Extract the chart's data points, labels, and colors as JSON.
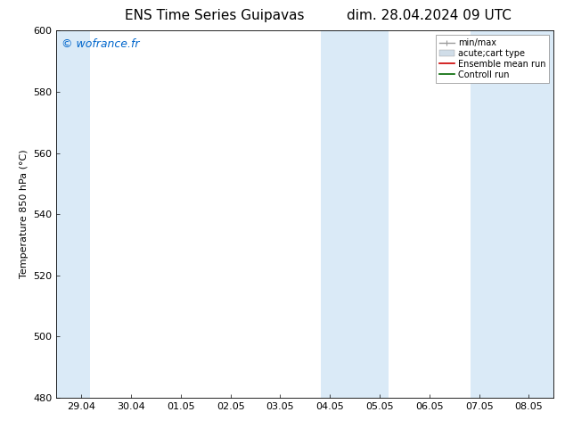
{
  "title_left": "ENS Time Series Guipavas",
  "title_right": "dim. 28.04.2024 09 UTC",
  "ylabel": "Temperature 850 hPa (°C)",
  "watermark": "© wofrance.fr",
  "watermark_color": "#0066cc",
  "ylim": [
    480,
    600
  ],
  "yticks": [
    480,
    500,
    520,
    540,
    560,
    580,
    600
  ],
  "xtick_labels": [
    "29.04",
    "30.04",
    "01.05",
    "02.05",
    "03.05",
    "04.05",
    "05.05",
    "06.05",
    "07.05",
    "08.05"
  ],
  "background_color": "#ffffff",
  "plot_bg_color": "#ffffff",
  "shade_color": "#daeaf7",
  "shaded_ranges": [
    [
      -0.5,
      0.18
    ],
    [
      4.82,
      5.5
    ],
    [
      5.5,
      6.18
    ],
    [
      7.82,
      9.5
    ]
  ],
  "legend_entries": [
    {
      "label": "min/max",
      "color": "#999999",
      "lw": 1.0
    },
    {
      "label": "acute;cart type",
      "color": "#ccddee",
      "lw": 6.0
    },
    {
      "label": "Ensemble mean run",
      "color": "#cc0000",
      "lw": 1.0
    },
    {
      "label": "Controll run",
      "color": "#006600",
      "lw": 1.0
    }
  ],
  "title_fontsize": 11,
  "tick_fontsize": 8,
  "ylabel_fontsize": 8,
  "watermark_fontsize": 9,
  "legend_fontsize": 7
}
